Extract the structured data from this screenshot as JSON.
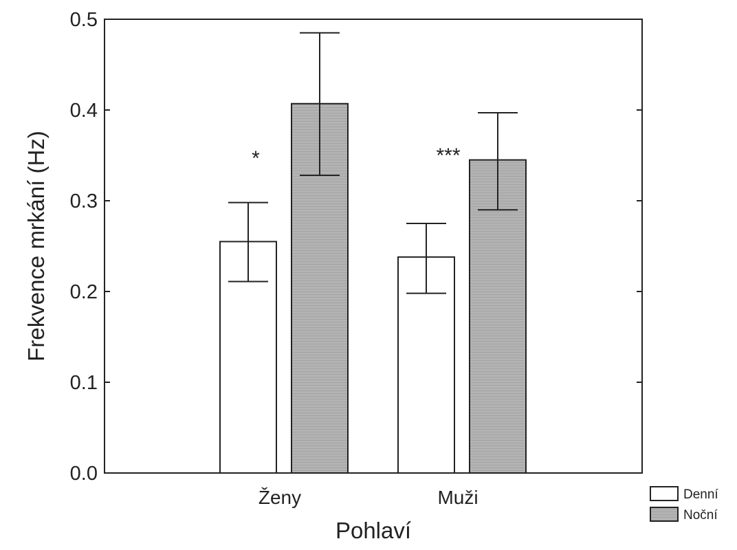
{
  "chart_data": {
    "type": "bar",
    "title": "",
    "xlabel": "Pohlaví",
    "ylabel": "Frekvence mrkání (Hz)",
    "ylim": [
      0,
      0.5
    ],
    "yticks": [
      "0.0",
      "0.1",
      "0.2",
      "0.3",
      "0.4",
      "0.5"
    ],
    "categories": [
      "Ženy",
      "Muži"
    ],
    "series": [
      {
        "name": "Denní",
        "color": "#ffffff",
        "values": [
          0.255,
          0.238
        ],
        "error_low": [
          0.211,
          0.198
        ],
        "error_high": [
          0.298,
          0.275
        ]
      },
      {
        "name": "Noční",
        "color": "#b3b3b3",
        "values": [
          0.407,
          0.345
        ],
        "error_low": [
          0.328,
          0.29
        ],
        "error_high": [
          0.485,
          0.397
        ]
      }
    ],
    "annotations": [
      "*",
      "***"
    ],
    "legend": "bottom-right",
    "grid": false
  }
}
